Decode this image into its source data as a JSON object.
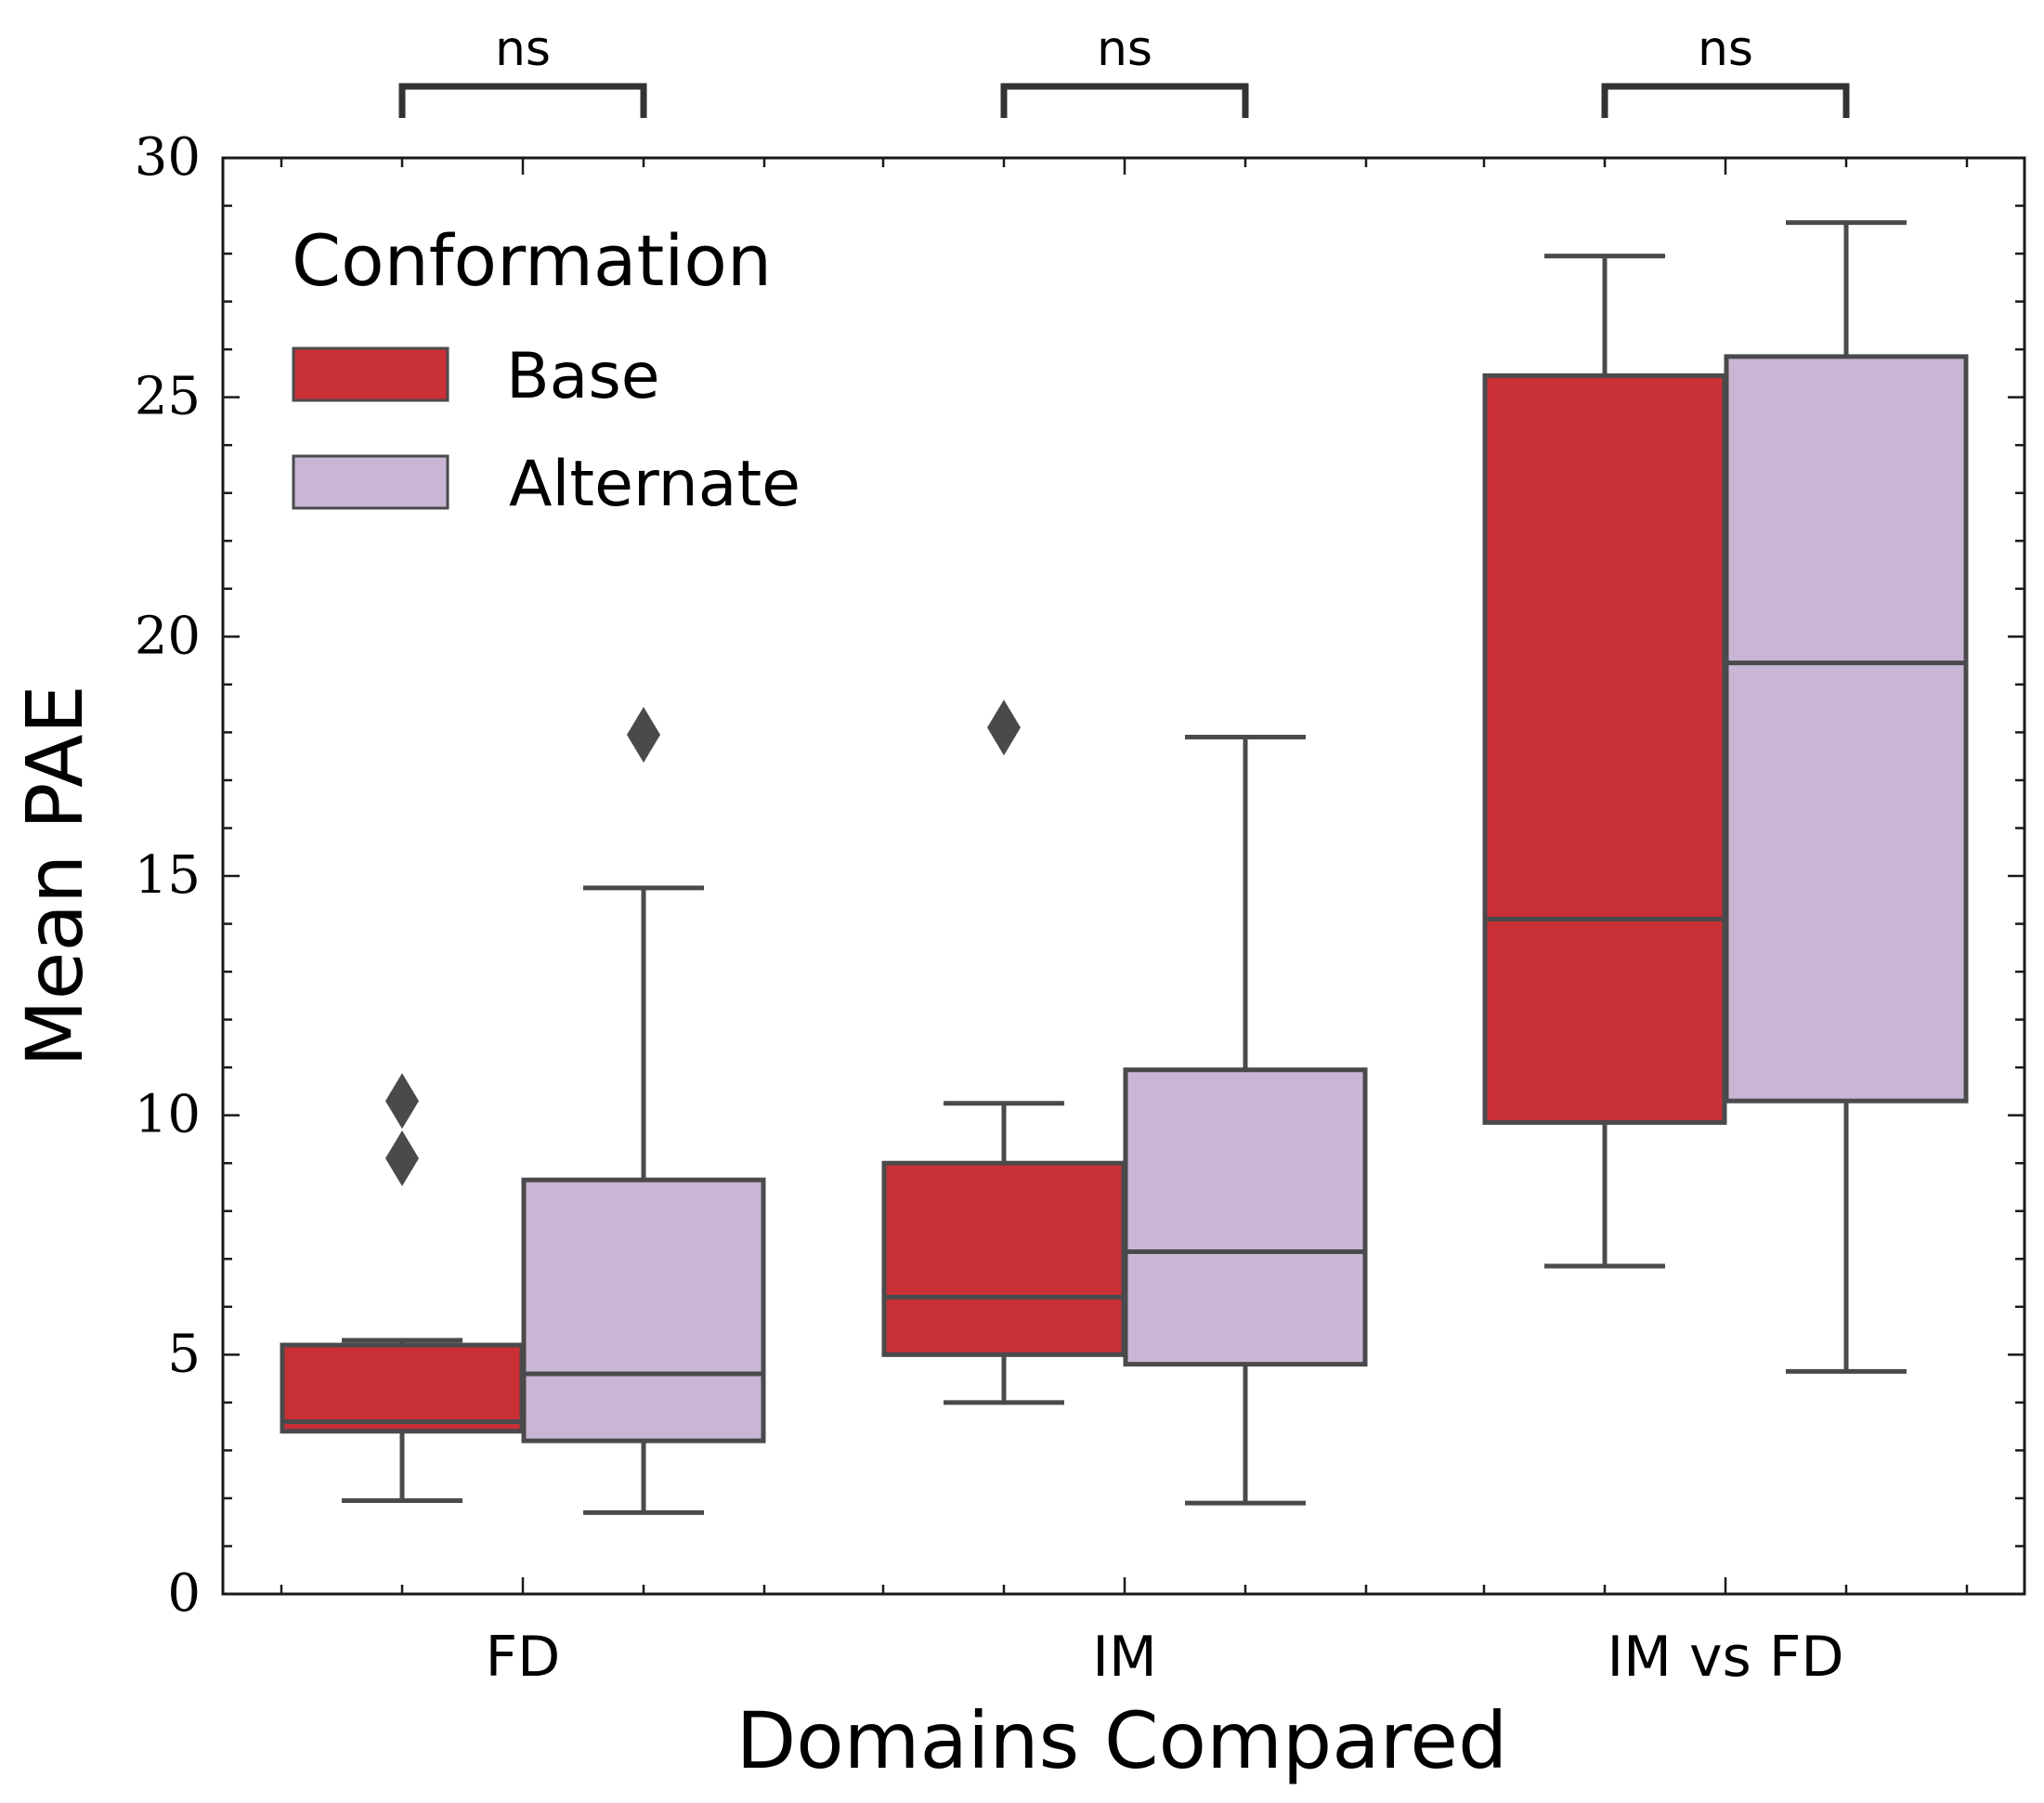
{
  "chart_data": {
    "type": "box",
    "xlabel": "Domains Compared",
    "ylabel": "Mean PAE",
    "ylim": [
      0,
      30
    ],
    "yticks": [
      "0",
      "5",
      "10",
      "15",
      "20",
      "25",
      "30"
    ],
    "categories": [
      "FD",
      "IM",
      "IM vs FD"
    ],
    "legend": {
      "title": "Conformation",
      "position": "top-left",
      "entries": [
        "Base",
        "Alternate"
      ]
    },
    "series": [
      {
        "name": "Base",
        "color": "#c93035",
        "boxes": [
          {
            "whisker_low": 1.95,
            "q1": 3.4,
            "median": 3.6,
            "q3": 5.2,
            "whisker_high": 5.3,
            "outliers": [
              9.1,
              10.3
            ]
          },
          {
            "whisker_low": 4.0,
            "q1": 5.0,
            "median": 6.2,
            "q3": 9.0,
            "whisker_high": 10.25,
            "outliers": [
              18.1
            ]
          },
          {
            "whisker_low": 6.85,
            "q1": 9.85,
            "median": 14.1,
            "q3": 25.45,
            "whisker_high": 27.95,
            "outliers": []
          }
        ]
      },
      {
        "name": "Alternate",
        "color": "#c9b6d4",
        "boxes": [
          {
            "whisker_low": 1.7,
            "q1": 3.2,
            "median": 4.6,
            "q3": 8.65,
            "whisker_high": 14.75,
            "outliers": [
              17.95
            ]
          },
          {
            "whisker_low": 1.9,
            "q1": 4.8,
            "median": 7.15,
            "q3": 10.95,
            "whisker_high": 17.9,
            "outliers": []
          },
          {
            "whisker_low": 4.65,
            "q1": 10.3,
            "median": 19.45,
            "q3": 25.85,
            "whisker_high": 28.65,
            "outliers": []
          }
        ]
      }
    ],
    "annotations": [
      {
        "category": "FD",
        "text": "ns"
      },
      {
        "category": "IM",
        "text": "ns"
      },
      {
        "category": "IM vs FD",
        "text": "ns"
      }
    ],
    "grid": false
  },
  "colors": {
    "edge": "#4a4a4d",
    "axis": "#1a1a1a"
  }
}
